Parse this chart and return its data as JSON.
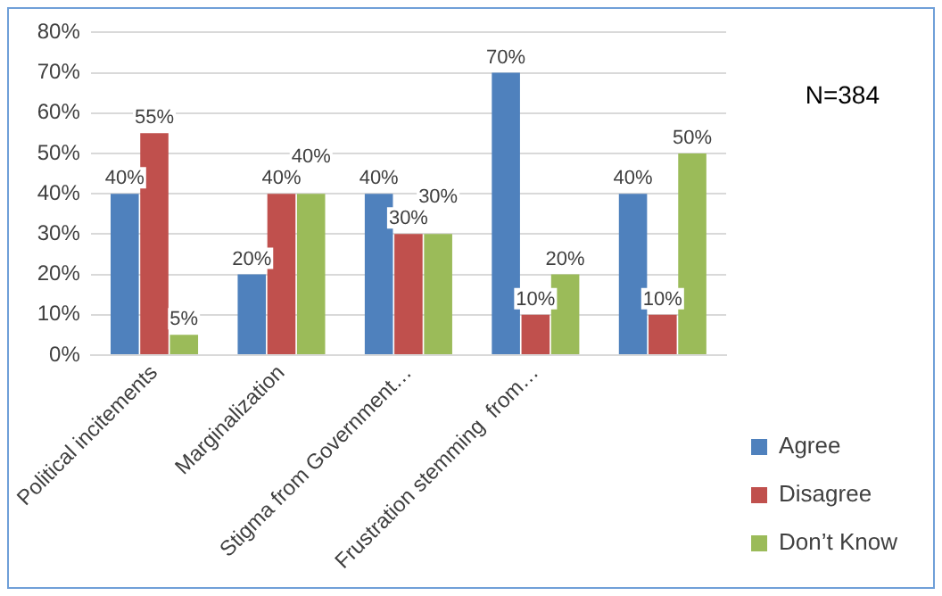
{
  "chart_data": {
    "type": "bar",
    "categories": [
      "Political incitements",
      "Marginalization",
      "Stigma from Government…",
      "Frustration stemming  from…",
      null
    ],
    "series": [
      {
        "name": "Agree",
        "color": "#4f81bd",
        "values": [
          40,
          20,
          40,
          70,
          40
        ],
        "value_labels": [
          "40%",
          "20%",
          "40%",
          "70%",
          "40%"
        ]
      },
      {
        "name": "Disagree",
        "color": "#c0504d",
        "values": [
          55,
          40,
          30,
          10,
          10
        ],
        "value_labels": [
          "55%",
          "40%",
          "30%",
          "10%",
          "10%"
        ]
      },
      {
        "name": "Don’t Know",
        "color": "#9bbb59",
        "values": [
          5,
          40,
          30,
          20,
          50
        ],
        "value_labels": [
          "5%",
          "40%",
          "30%",
          "20%",
          "50%"
        ]
      }
    ],
    "ylim": [
      0,
      80
    ],
    "yticks": [
      {
        "value": 0,
        "label": "0%"
      },
      {
        "value": 10,
        "label": "10%"
      },
      {
        "value": 20,
        "label": "20%"
      },
      {
        "value": 30,
        "label": "30%"
      },
      {
        "value": 40,
        "label": "40%"
      },
      {
        "value": 50,
        "label": "50%"
      },
      {
        "value": 60,
        "label": "60%"
      },
      {
        "value": 70,
        "label": "70%"
      },
      {
        "value": 80,
        "label": "80%"
      }
    ],
    "grid": "y",
    "legend": "right",
    "annotations": [
      "N=384"
    ]
  }
}
